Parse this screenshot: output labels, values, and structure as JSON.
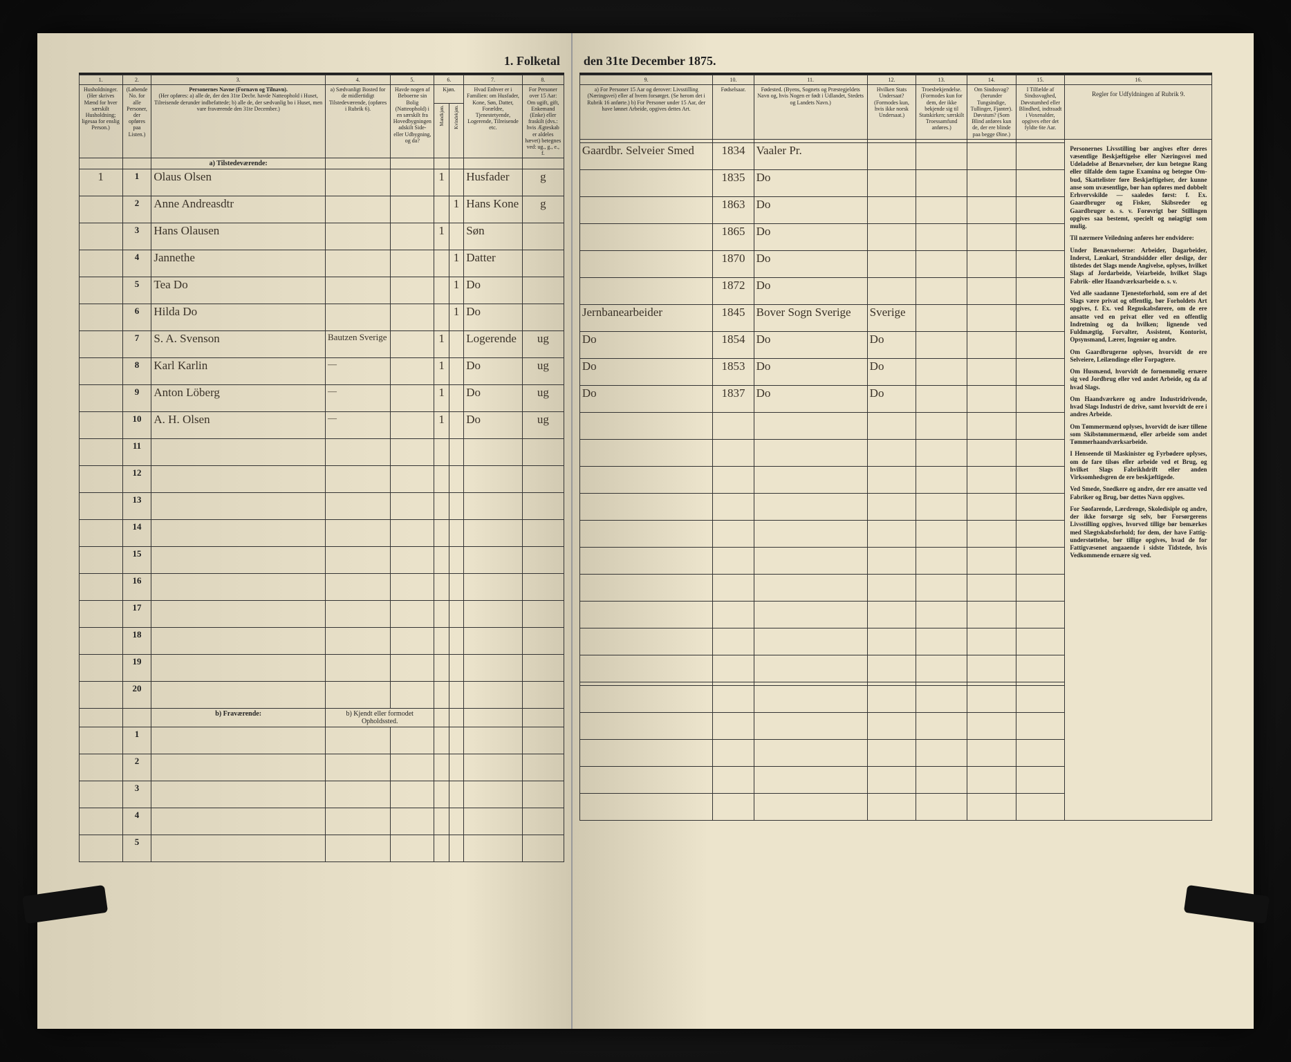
{
  "title_left": "1. Folketal",
  "title_right": "den 31te December 1875.",
  "columns_left": {
    "c1": "1.",
    "c2": "2.",
    "c3": "3.",
    "c4": "4.",
    "c5": "5.",
    "c6": "6.",
    "c7": "7.",
    "c8": "8.",
    "h1": "Husholdninger. (Her skrives Mænd for hver særskilt Husholdning; ligesaa for enslig Person.)",
    "h2": "(Løbende No. for alle Personer, der opføres paa Listen.)",
    "h3_title": "Personernes Navne (Fornavn og Tilnavn).",
    "h3_body": "(Her opføres: a) alle de, der den 31te Decbr. havde Natteophold i Huset, Tilreisende derunder indbefattede; b) alle de, der sædvanlig bo i Huset, men vare fraværende den 31te December.)",
    "h4": "a) Sædvanligt Bosted for de midlertidigt Tilstedeværende, (opføres i Rubrik 6).",
    "h5": "Havde nogen af Beboerne sin Bolig (Natteophold) i en særskilt fra Hovedbygningen adskilt Side- eller Udbygning, og da?",
    "h6a": "Kjøn.",
    "h6m": "Mandkjøn.",
    "h6k": "Kvindekjøn.",
    "h7": "Hvad Enhver er i Familien: om Husfader, Kone, Søn, Datter, Forældre, Tjenestetyende, Logerende, Tilreisende etc.",
    "h8": "For Personer over 15 Aar: Om ugift, gift, Enkemand (Enke) eller fraskilt (dvs.: hvis Ægteskab er aldeles hævet) betegnes ved: ug., g., e., f."
  },
  "columns_right": {
    "c9": "9.",
    "c10": "10.",
    "c11": "11.",
    "c12": "12.",
    "c13": "13.",
    "c14": "14.",
    "c15": "15.",
    "c16": "16.",
    "h9": "a) For Personer 15 Aar og derover: Livsstilling (Næringsvei) eller af hvem forsørget. (Se herom det i Rubrik 16 anførte.) b) For Personer under 15 Aar, der have lønnet Arbeide, opgives dettes Art.",
    "h10": "Fødselsaar.",
    "h11": "Fødested. (Byens, Sognets og Præstegjeldets Navn og, hvis Nogen er født i Udlandet, Stedets og Landets Navn.)",
    "h12": "Hvilken Stats Undersaat? (Formodes kun, hvis ikke norsk Undersaat.)",
    "h13": "Troesbekjendelse. (Formodes kun for dem, der ikke bekjende sig til Statskirken; særskilt Troessamfund anføres.)",
    "h14": "Om Sindssvag? (herunder Tungsindige, Tullinger, Fjanter). Døvstum? (Som Blind anføres kun de, der ere blinde paa begge Øine.)",
    "h15": "I Tilfælde af Sindssvaghed, Døvstumhed eller Blindhed, indtraadt i Voxenalder, opgives efter det fyldte 6te Aar.",
    "h16_title": "Regler for Udfyldningen af Rubrik 9."
  },
  "section_a": "a) Tilstedeværende:",
  "section_b": "b) Fraværende:",
  "kjendt_label": "b) Kjendt eller formodet Opholdssted.",
  "rows": [
    {
      "hh": "1",
      "no": "1",
      "name": "Olaus Olsen",
      "c4": "",
      "c5": "",
      "m": "1",
      "k": "",
      "fam": "Husfader",
      "civ": "g",
      "occ": "Gaardbr. Selveier Smed",
      "year": "1834",
      "place": "Vaaler Pr.",
      "stat": "",
      "rel": ""
    },
    {
      "hh": "",
      "no": "2",
      "name": "Anne Andreasdtr",
      "c4": "",
      "c5": "",
      "m": "",
      "k": "1",
      "fam": "Hans Kone",
      "civ": "g",
      "occ": "",
      "year": "1835",
      "place": "Do",
      "stat": "",
      "rel": ""
    },
    {
      "hh": "",
      "no": "3",
      "name": "Hans Olausen",
      "c4": "",
      "c5": "",
      "m": "1",
      "k": "",
      "fam": "Søn",
      "civ": "",
      "occ": "",
      "year": "1863",
      "place": "Do",
      "stat": "",
      "rel": ""
    },
    {
      "hh": "",
      "no": "4",
      "name": "Jannethe",
      "c4": "",
      "c5": "",
      "m": "",
      "k": "1",
      "fam": "Datter",
      "civ": "",
      "occ": "",
      "year": "1865",
      "place": "Do",
      "stat": "",
      "rel": ""
    },
    {
      "hh": "",
      "no": "5",
      "name": "Tea  Do",
      "c4": "",
      "c5": "",
      "m": "",
      "k": "1",
      "fam": "Do",
      "civ": "",
      "occ": "",
      "year": "1870",
      "place": "Do",
      "stat": "",
      "rel": ""
    },
    {
      "hh": "",
      "no": "6",
      "name": "Hilda  Do",
      "c4": "",
      "c5": "",
      "m": "",
      "k": "1",
      "fam": "Do",
      "civ": "",
      "occ": "",
      "year": "1872",
      "place": "Do",
      "stat": "",
      "rel": ""
    },
    {
      "hh": "",
      "no": "7",
      "name": "S. A. Svenson",
      "c4": "Bautzen Sverige",
      "c5": "",
      "m": "1",
      "k": "",
      "fam": "Logerende",
      "civ": "ug",
      "occ": "Jernbanearbeider",
      "year": "1845",
      "place": "Bover Sogn Sverige",
      "stat": "Sverige",
      "rel": ""
    },
    {
      "hh": "",
      "no": "8",
      "name": "Karl Karlin",
      "c4": "—",
      "c5": "",
      "m": "1",
      "k": "",
      "fam": "Do",
      "civ": "ug",
      "occ": "Do",
      "year": "1854",
      "place": "Do",
      "stat": "Do",
      "rel": ""
    },
    {
      "hh": "",
      "no": "9",
      "name": "Anton Löberg",
      "c4": "—",
      "c5": "",
      "m": "1",
      "k": "",
      "fam": "Do",
      "civ": "ug",
      "occ": "Do",
      "year": "1853",
      "place": "Do",
      "stat": "Do",
      "rel": ""
    },
    {
      "hh": "",
      "no": "10",
      "name": "A. H. Olsen",
      "c4": "—",
      "c5": "",
      "m": "1",
      "k": "",
      "fam": "Do",
      "civ": "ug",
      "occ": "Do",
      "year": "1837",
      "place": "Do",
      "stat": "Do",
      "rel": ""
    }
  ],
  "empty_nums": [
    "11",
    "12",
    "13",
    "14",
    "15",
    "16",
    "17",
    "18",
    "19",
    "20"
  ],
  "fra_nums": [
    "1",
    "2",
    "3",
    "4",
    "5"
  ],
  "instructions": {
    "p1": "Personernes Livsstilling bør angives efter deres væsentlige Beskjæftigelse eller Næringsvei med Udeladelse af Benævnelser, der kun betegne Rang eller tilfalde dem tagne Examina og betegne Om­bud, Skattelister føre Beskjæfti­gelser, der kunne anse som uvæsentlige, bør han opføres med dobbelt Erhvervskilde — saaledes først: f. Ex. Gaardbruger og Fisker, Skibsreder og Gaardbruger o. s. v. Forøvrigt bør Stillingen opgives saa bestemt, specielt og nøiagtigt som mulig.",
    "p2": "Til nærmere Veiledning anføres her endvidere:",
    "p3": "Under Benævnelserne: Arbeider, Dagarbeider, Inderst, Lænkarl, Strandsidder eller deslige, der tilstedes det Slags mende Angivelse, oplyses, hvilket Slags af Jordarbeide, Veiarbeide, hvilket Slags Fabrik- eller Haandværksarbeide o. s. v.",
    "p4": "Ved alle saadanne Tjenesteforhold, som ere af det Slags være privat og offentlig, bør Forholdets Art opgives, f. Ex. ved Regnskabsførere, om de ere ansatte ved en privat eller ved en offentlig Indretning og da hvilken; lignende ved Fuldmægtig, Forvalter, Assistent, Kontorist, Opsynsmand, Lærer, Ingeniør og andre.",
    "p5": "Om Gaardbrugerne oplyses, hvorvidt de ere Selveiere, Leilændinge eller Forpagtere.",
    "p6": "Om Husmænd, hvorvidt de fornemmelig ernære sig ved Jordbrug eller ved andet Arbeide, og da af hvad Slags.",
    "p7": "Om Haandværkere og andre Industridrivende, hvad Slags Industri de drive, samt hvorvidt de ere i andres Arbeide.",
    "p8": "Om Tømmermænd oplyses, hvorvidt de især tillene som Skibstømmermænd, eller arbeide som andet Tømmerhaandværksarbeide.",
    "p9": "I Henseende til Maskinister og Fyrbødere oplyses, om de fare tilsøs eller arbeide ved et Brug, og hvilket Slags Fabrikhdrift eller anden Virksomhedsgren de ere beskjæftigede.",
    "p10": "Ved Smede, Snedkere og andre, der ere ansatte ved Fabriker og Brug, bør dettes Navn opgives.",
    "p11": "For Søofarende, Lærdrenge, Skoledisiple og andre, der ikke forsørge sig selv, bør Forsørgerens Livsstilling opgives, hvorved tillige bør bemærkes med Slægtskabsforhold; for dem, der have Fattig­understøttelse, bør tillige opgives, hvad de for Fattigvæsenet angaaende i sidste Tid­stede, hvis Vedkommende ernære sig ved."
  },
  "colors": {
    "paper": "#ece4cc",
    "ink": "#222222",
    "handwriting": "#3a3228",
    "rule": "#333333"
  }
}
